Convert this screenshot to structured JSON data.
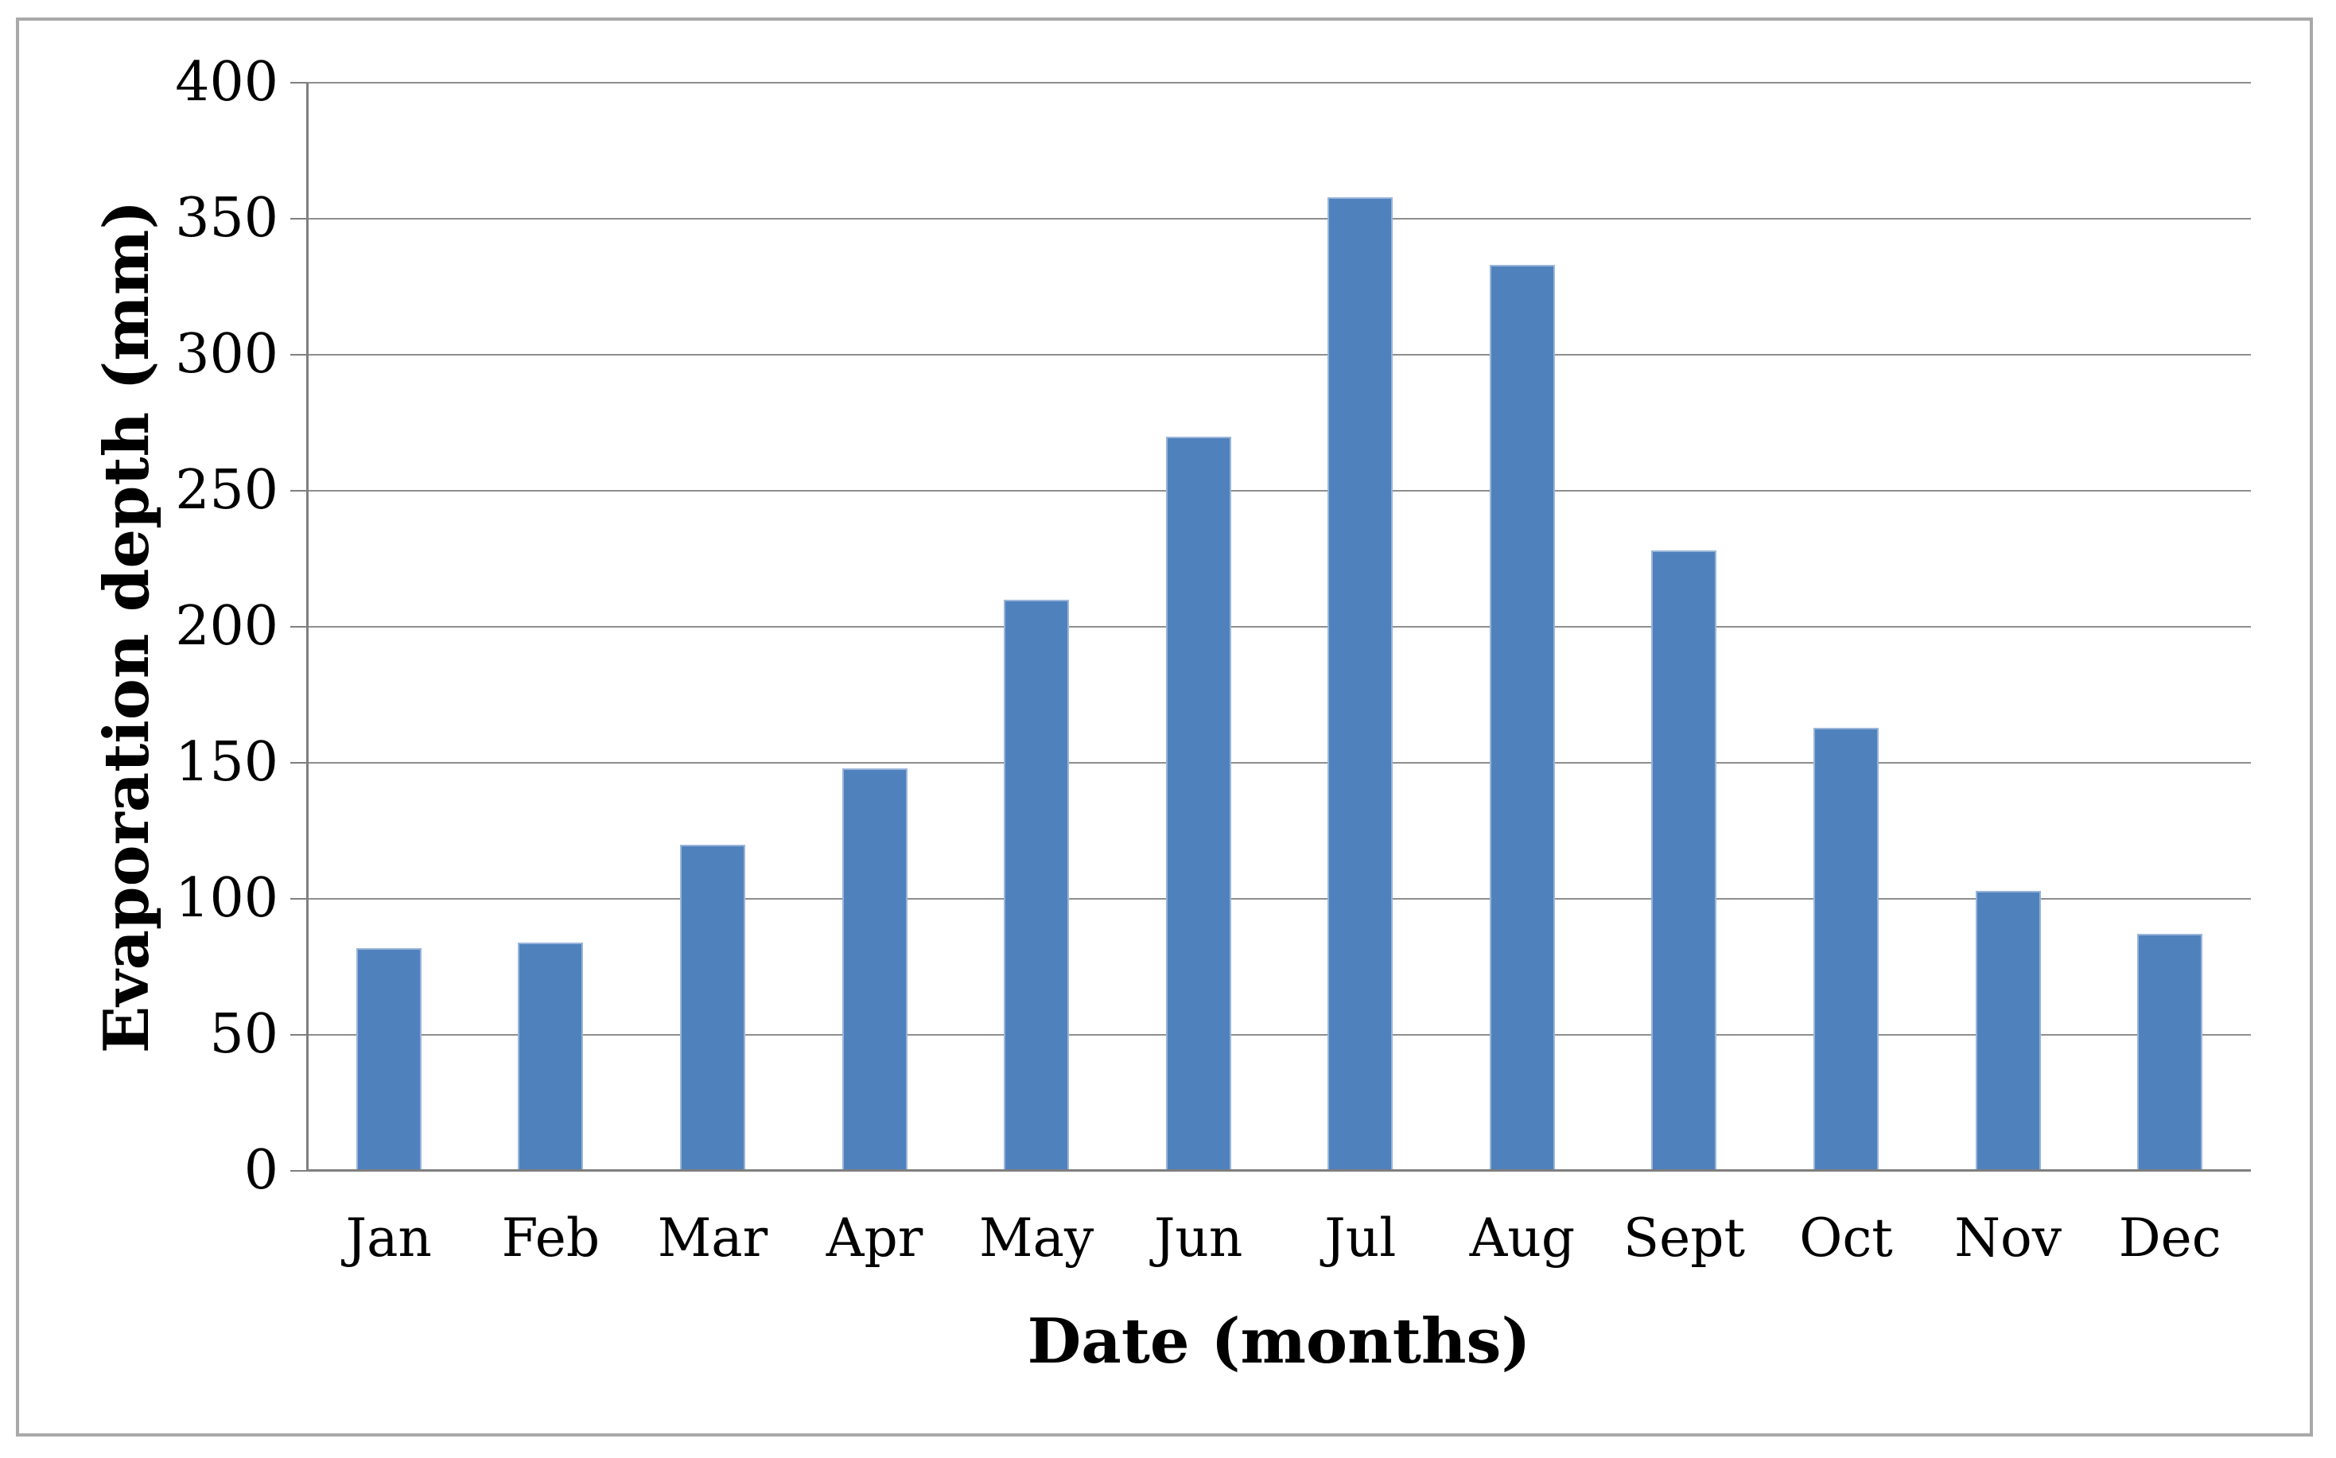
{
  "figure": {
    "background": "#FFFFFF",
    "border_color": "#A9A9A9"
  },
  "chart_data": {
    "type": "bar",
    "categories": [
      "Jan",
      "Feb",
      "Mar",
      "Apr",
      "May",
      "Jun",
      "Jul",
      "Aug",
      "Sept",
      "Oct",
      "Nov",
      "Dec"
    ],
    "values": [
      82,
      84,
      120,
      148,
      210,
      270,
      358,
      333,
      228,
      163,
      103,
      87
    ],
    "title": "",
    "xlabel": "Date (months)",
    "ylabel": "Evaporation depth (mm)",
    "ylim": [
      0,
      400
    ],
    "ytick_step": 50,
    "yticks": [
      400,
      350,
      300,
      250,
      200,
      150,
      100,
      50,
      0
    ],
    "grid": true,
    "legend": false,
    "bar_color": "#4F81BD",
    "bar_edge_color": "#9AB5D9",
    "gridline_color": "#8E8E8E",
    "axis_color": "#7F7F7F",
    "text_color": "#000000"
  }
}
